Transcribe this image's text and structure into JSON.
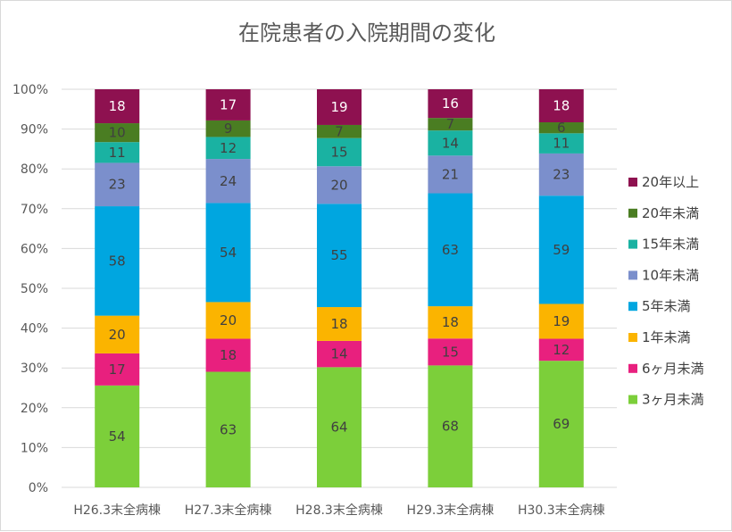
{
  "chart_data": {
    "type": "bar",
    "stacked": true,
    "normalized": true,
    "title": "在院患者の入院期間の変化",
    "categories": [
      "H26.3末全病棟",
      "H27.3末全病棟",
      "H28.3末全病棟",
      "H29.3末全病棟",
      "H30.3末全病棟"
    ],
    "ylim": [
      0,
      100
    ],
    "yticks": [
      "0%",
      "10%",
      "20%",
      "30%",
      "40%",
      "50%",
      "60%",
      "70%",
      "80%",
      "90%",
      "100%"
    ],
    "grid": true,
    "legend_position": "right",
    "series": [
      {
        "name": "3ヶ月未満",
        "color": "#7ccf3a",
        "values": [
          54,
          63,
          64,
          68,
          69
        ]
      },
      {
        "name": "6ヶ月未満",
        "color": "#e8207e",
        "values": [
          17,
          18,
          14,
          15,
          12
        ]
      },
      {
        "name": "1年未満",
        "color": "#fbb400",
        "values": [
          20,
          20,
          18,
          18,
          19
        ]
      },
      {
        "name": "5年未満",
        "color": "#00a6e0",
        "values": [
          58,
          54,
          55,
          63,
          59
        ]
      },
      {
        "name": "10年未満",
        "color": "#7b8fcc",
        "values": [
          23,
          24,
          20,
          21,
          23
        ]
      },
      {
        "name": "15年未満",
        "color": "#1ab2a2",
        "values": [
          11,
          12,
          15,
          14,
          11
        ]
      },
      {
        "name": "20年未満",
        "color": "#4a7d22",
        "values": [
          10,
          9,
          7,
          7,
          6
        ]
      },
      {
        "name": "20年以上",
        "color": "#8e1150",
        "values": [
          18,
          17,
          19,
          16,
          18
        ]
      }
    ]
  }
}
